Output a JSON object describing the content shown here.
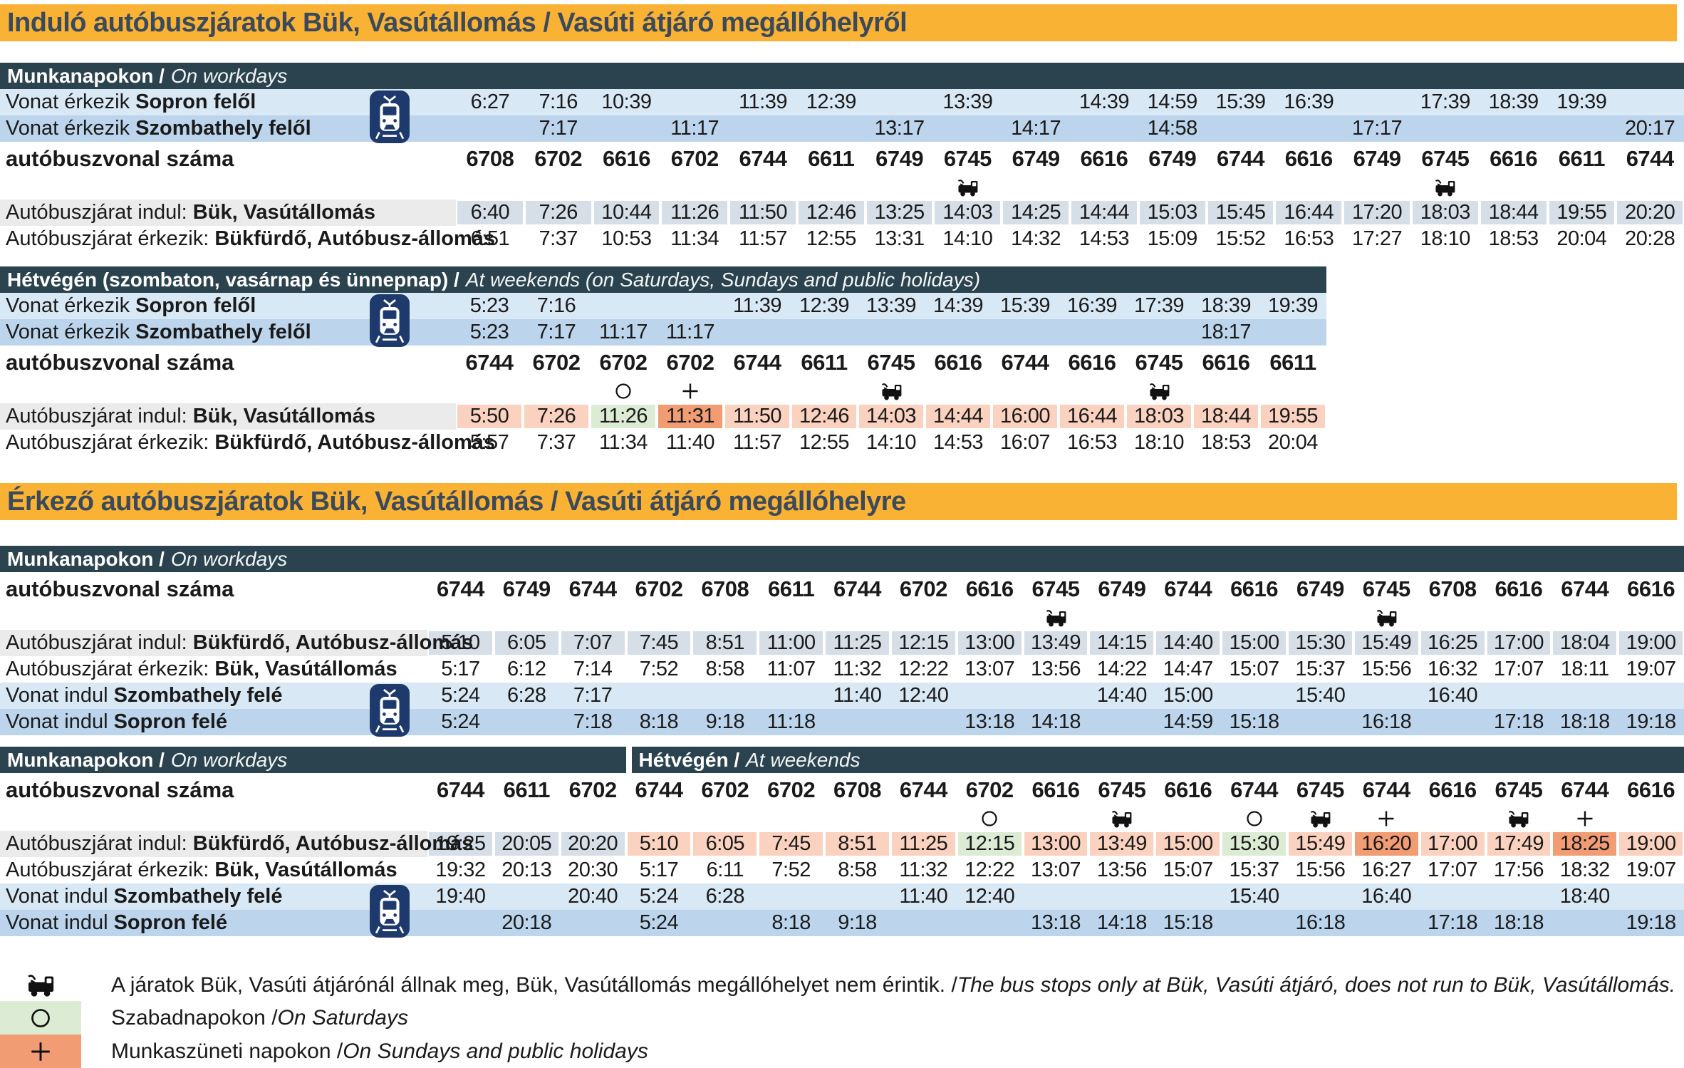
{
  "colors": {
    "orange": "#F9B233",
    "title_text": "#3A4A5C",
    "dark": "#2B434E",
    "blue1": "#D9E8F5",
    "blue2": "#BCD5EC",
    "cell_grey": "#D6DEE8",
    "label_grey": "#EBEBEB",
    "salmon": "#FAD2BF",
    "green": "#DCEBD4",
    "deep_orange": "#F29C73",
    "navy": "#1E3A6C",
    "text": "#1A1A1A"
  },
  "sections": [
    {
      "title": "Induló autóbuszjáratok Bük, Vasútállomás / Vasúti átjáró megállóhelyről"
    },
    {
      "title": "Érkező autóbuszjáratok Bük, Vasútállomás / Vasúti átjáró megállóhelyre"
    }
  ],
  "tables": [
    {
      "name": "departures-workdays",
      "headers": [
        {
          "bold": "Munkanapokon /",
          "italic": "On workdays"
        }
      ],
      "rows": [
        {
          "name": "train-arrives-sopron",
          "kind": "time",
          "bg": "blue1",
          "train_icon": true,
          "label": {
            "pre": "Vonat érkezik ",
            "bold": "Sopron felől"
          },
          "cells": [
            "6:27",
            "7:16",
            "10:39",
            "",
            "11:39",
            "12:39",
            "",
            "13:39",
            "",
            "14:39",
            "14:59",
            "15:39",
            "16:39",
            "",
            "17:39",
            "18:39",
            "19:39",
            ""
          ]
        },
        {
          "name": "train-arrives-szombathely",
          "kind": "time",
          "bg": "blue2",
          "label": {
            "pre": "Vonat érkezik ",
            "bold": "Szombathely felől"
          },
          "cells": [
            "",
            "7:17",
            "",
            "11:17",
            "",
            "",
            "13:17",
            "",
            "14:17",
            "",
            "14:58",
            "",
            "",
            "17:17",
            "",
            "",
            "",
            "20:17"
          ]
        },
        {
          "name": "bus-line-numbers",
          "kind": "lines",
          "label": {
            "pre": "autóbuszvonal száma",
            "bold": ""
          },
          "cells": [
            "6708",
            "6702",
            "6616",
            "6702",
            "6744",
            "6611",
            "6749",
            "6745",
            "6749",
            "6616",
            "6749",
            "6744",
            "6616",
            "6749",
            "6745",
            "6616",
            "6611",
            "6744"
          ]
        },
        {
          "name": "symbols",
          "kind": "syms",
          "cells": [
            "",
            "",
            "",
            "",
            "",
            "",
            "",
            "bus",
            "",
            "",
            "",
            "",
            "",
            "",
            "bus",
            "",
            "",
            ""
          ]
        },
        {
          "name": "bus-departs",
          "kind": "depart",
          "label_bg": "label_grey",
          "cell_bg": "cell_grey",
          "label": {
            "pre": "Autóbuszjárat indul: ",
            "bold": "Bük, Vasútállomás"
          },
          "cells": [
            "6:40",
            "7:26",
            "10:44",
            "11:26",
            "11:50",
            "12:46",
            "13:25",
            "14:03",
            "14:25",
            "14:44",
            "15:03",
            "15:45",
            "16:44",
            "17:20",
            "18:03",
            "18:44",
            "19:55",
            "20:20"
          ]
        },
        {
          "name": "bus-arrives",
          "kind": "time",
          "label": {
            "pre": "Autóbuszjárat érkezik: ",
            "bold": "Bükfürdő, Autóbusz-állomás"
          },
          "cells": [
            "6:51",
            "7:37",
            "10:53",
            "11:34",
            "11:57",
            "12:55",
            "13:31",
            "14:10",
            "14:32",
            "14:53",
            "15:09",
            "15:52",
            "16:53",
            "17:27",
            "18:10",
            "18:53",
            "20:04",
            "20:28"
          ]
        }
      ]
    },
    {
      "name": "departures-weekends",
      "headers": [
        {
          "bold": "Hétvégén (szombaton, vasárnap és ünnepnap) /",
          "italic": "At weekends (on Saturdays, Sundays and public holidays)"
        }
      ],
      "rows": [
        {
          "name": "train-arrives-sopron",
          "kind": "time",
          "bg": "blue1",
          "train_icon": true,
          "label": {
            "pre": "Vonat érkezik ",
            "bold": "Sopron felől"
          },
          "cells": [
            "5:23",
            "7:16",
            "",
            "",
            "11:39",
            "12:39",
            "13:39",
            "14:39",
            "15:39",
            "16:39",
            "17:39",
            "18:39",
            "19:39"
          ]
        },
        {
          "name": "train-arrives-szombathely",
          "kind": "time",
          "bg": "blue2",
          "label": {
            "pre": "Vonat érkezik ",
            "bold": "Szombathely felől"
          },
          "cells": [
            "5:23",
            "7:17",
            "11:17",
            "11:17",
            "",
            "",
            "",
            "",
            "",
            "",
            "",
            "18:17",
            ""
          ]
        },
        {
          "name": "bus-line-numbers",
          "kind": "lines",
          "label": {
            "pre": "autóbuszvonal száma",
            "bold": ""
          },
          "cells": [
            "6744",
            "6702",
            "6702",
            "6702",
            "6744",
            "6611",
            "6745",
            "6616",
            "6744",
            "6616",
            "6745",
            "6616",
            "6611"
          ]
        },
        {
          "name": "symbols",
          "kind": "syms",
          "cells": [
            "",
            "",
            "circle",
            "plus",
            "",
            "",
            "bus",
            "",
            "",
            "",
            "bus",
            "",
            ""
          ]
        },
        {
          "name": "bus-departs",
          "kind": "depart",
          "label_bg": "label_grey",
          "label": {
            "pre": "Autóbuszjárat indul: ",
            "bold": "Bük, Vasútállomás"
          },
          "cell_bgs": [
            "salmon",
            "salmon",
            "green",
            "deep_orange",
            "salmon",
            "salmon",
            "salmon",
            "salmon",
            "salmon",
            "salmon",
            "salmon",
            "salmon",
            "salmon"
          ],
          "cells": [
            "5:50",
            "7:26",
            "11:26",
            "11:31",
            "11:50",
            "12:46",
            "14:03",
            "14:44",
            "16:00",
            "16:44",
            "18:03",
            "18:44",
            "19:55"
          ]
        },
        {
          "name": "bus-arrives",
          "kind": "time",
          "label": {
            "pre": "Autóbuszjárat érkezik: ",
            "bold": "Bükfürdő, Autóbusz-állomás"
          },
          "cells": [
            "5:57",
            "7:37",
            "11:34",
            "11:40",
            "11:57",
            "12:55",
            "14:10",
            "14:53",
            "16:07",
            "16:53",
            "18:10",
            "18:53",
            "20:04"
          ]
        }
      ]
    },
    {
      "name": "arrivals-workdays",
      "headers": [
        {
          "bold": "Munkanapokon /",
          "italic": "On workdays"
        }
      ],
      "rows": [
        {
          "name": "bus-line-numbers",
          "kind": "lines",
          "label": {
            "pre": "autóbuszvonal száma",
            "bold": ""
          },
          "cells": [
            "6744",
            "6749",
            "6744",
            "6702",
            "6708",
            "6611",
            "6744",
            "6702",
            "6616",
            "6745",
            "6749",
            "6744",
            "6616",
            "6749",
            "6745",
            "6708",
            "6616",
            "6744",
            "6616"
          ]
        },
        {
          "name": "symbols",
          "kind": "syms",
          "cells": [
            "",
            "",
            "",
            "",
            "",
            "",
            "",
            "",
            "",
            "bus",
            "",
            "",
            "",
            "",
            "bus",
            "",
            "",
            "",
            ""
          ]
        },
        {
          "name": "bus-departs",
          "kind": "depart",
          "label_bg": "label_grey",
          "cell_bg": "cell_grey",
          "label": {
            "pre": "Autóbuszjárat indul: ",
            "bold": "Bükfürdő, Autóbusz-állomás"
          },
          "cells": [
            "5:10",
            "6:05",
            "7:07",
            "7:45",
            "8:51",
            "11:00",
            "11:25",
            "12:15",
            "13:00",
            "13:49",
            "14:15",
            "14:40",
            "15:00",
            "15:30",
            "15:49",
            "16:25",
            "17:00",
            "18:04",
            "19:00"
          ]
        },
        {
          "name": "bus-arrives",
          "kind": "time",
          "label": {
            "pre": "Autóbuszjárat érkezik: ",
            "bold": "Bük, Vasútállomás"
          },
          "cells": [
            "5:17",
            "6:12",
            "7:14",
            "7:52",
            "8:58",
            "11:07",
            "11:32",
            "12:22",
            "13:07",
            "13:56",
            "14:22",
            "14:47",
            "15:07",
            "15:37",
            "15:56",
            "16:32",
            "17:07",
            "18:11",
            "19:07"
          ]
        },
        {
          "name": "train-departs-szombathely",
          "kind": "time",
          "bg": "blue1",
          "train_icon": true,
          "label": {
            "pre": "Vonat indul ",
            "bold": "Szombathely felé"
          },
          "cells": [
            "5:24",
            "6:28",
            "7:17",
            "",
            "",
            "",
            "11:40",
            "12:40",
            "",
            "",
            "14:40",
            "15:00",
            "",
            "15:40",
            "",
            "16:40",
            "",
            "",
            ""
          ]
        },
        {
          "name": "train-departs-sopron",
          "kind": "time",
          "bg": "blue2",
          "label": {
            "pre": "Vonat indul ",
            "bold": "Sopron felé"
          },
          "cells": [
            "5:24",
            "",
            "7:18",
            "8:18",
            "9:18",
            "11:18",
            "",
            "",
            "13:18",
            "14:18",
            "",
            "14:59",
            "15:18",
            "",
            "16:18",
            "",
            "17:18",
            "18:18",
            "19:18"
          ]
        }
      ]
    },
    {
      "name": "arrivals-workdays-evening-and-weekends",
      "headers": [
        {
          "bold": "Munkanapokon /",
          "italic": "On workdays",
          "cols": 3,
          "includes_label": true
        },
        {
          "bold": "Hétvégén /",
          "italic": "At weekends",
          "cols": 16
        }
      ],
      "rows": [
        {
          "name": "bus-line-numbers",
          "kind": "lines",
          "label": {
            "pre": "autóbuszvonal száma",
            "bold": ""
          },
          "cells": [
            "6744",
            "6611",
            "6702",
            "6744",
            "6702",
            "6702",
            "6708",
            "6744",
            "6702",
            "6616",
            "6745",
            "6616",
            "6744",
            "6745",
            "6744",
            "6616",
            "6745",
            "6744",
            "6616"
          ]
        },
        {
          "name": "symbols",
          "kind": "syms",
          "cells": [
            "",
            "",
            "",
            "",
            "",
            "",
            "",
            "",
            "circle",
            "",
            "bus",
            "",
            "circle",
            "bus",
            "plus",
            "",
            "bus",
            "plus",
            ""
          ]
        },
        {
          "name": "bus-departs",
          "kind": "depart",
          "label_bg": "label_grey",
          "label": {
            "pre": "Autóbuszjárat indul: ",
            "bold": "Bükfürdő, Autóbusz-állomás"
          },
          "cell_bgs": [
            "cell_grey",
            "cell_grey",
            "cell_grey",
            "salmon",
            "salmon",
            "salmon",
            "salmon",
            "salmon",
            "green",
            "salmon",
            "salmon",
            "salmon",
            "green",
            "salmon",
            "deep_orange",
            "salmon",
            "salmon",
            "deep_orange",
            "salmon"
          ],
          "cells": [
            "19:25",
            "20:05",
            "20:20",
            "5:10",
            "6:05",
            "7:45",
            "8:51",
            "11:25",
            "12:15",
            "13:00",
            "13:49",
            "15:00",
            "15:30",
            "15:49",
            "16:20",
            "17:00",
            "17:49",
            "18:25",
            "19:00"
          ]
        },
        {
          "name": "bus-arrives",
          "kind": "time",
          "label": {
            "pre": "Autóbuszjárat érkezik: ",
            "bold": "Bük, Vasútállomás"
          },
          "cells": [
            "19:32",
            "20:13",
            "20:30",
            "5:17",
            "6:11",
            "7:52",
            "8:58",
            "11:32",
            "12:22",
            "13:07",
            "13:56",
            "15:07",
            "15:37",
            "15:56",
            "16:27",
            "17:07",
            "17:56",
            "18:32",
            "19:07"
          ]
        },
        {
          "name": "train-departs-szombathely",
          "kind": "time",
          "bg": "blue1",
          "train_icon": true,
          "label": {
            "pre": "Vonat indul ",
            "bold": "Szombathely felé"
          },
          "cells": [
            "19:40",
            "",
            "20:40",
            "5:24",
            "6:28",
            "",
            "",
            "11:40",
            "12:40",
            "",
            "",
            "",
            "15:40",
            "",
            "16:40",
            "",
            "",
            "18:40",
            ""
          ]
        },
        {
          "name": "train-departs-sopron",
          "kind": "time",
          "bg": "blue2",
          "label": {
            "pre": "Vonat indul ",
            "bold": "Sopron felé"
          },
          "cells": [
            "",
            "20:18",
            "",
            "5:24",
            "",
            "8:18",
            "9:18",
            "",
            "",
            "13:18",
            "14:18",
            "15:18",
            "",
            "16:18",
            "",
            "17:18",
            "18:18",
            "",
            "19:18"
          ]
        }
      ]
    }
  ],
  "legend": {
    "items": [
      {
        "icon": "bus",
        "swatch": "",
        "hu": "A járatok Bük, Vasúti átjárónál állnak meg, Bük, Vasútállomás megállóhelyet nem érintik. / ",
        "en": "The bus stops only at Bük, Vasúti átjáró, does not run to Bük, Vasútállomás."
      },
      {
        "icon": "circle",
        "swatch": "green",
        "hu": "Szabadnapokon / ",
        "en": "On Saturdays"
      },
      {
        "icon": "plus",
        "swatch": "deep_orange",
        "hu": "Munkaszüneti napokon / ",
        "en": "On Sundays and public holidays"
      }
    ]
  }
}
